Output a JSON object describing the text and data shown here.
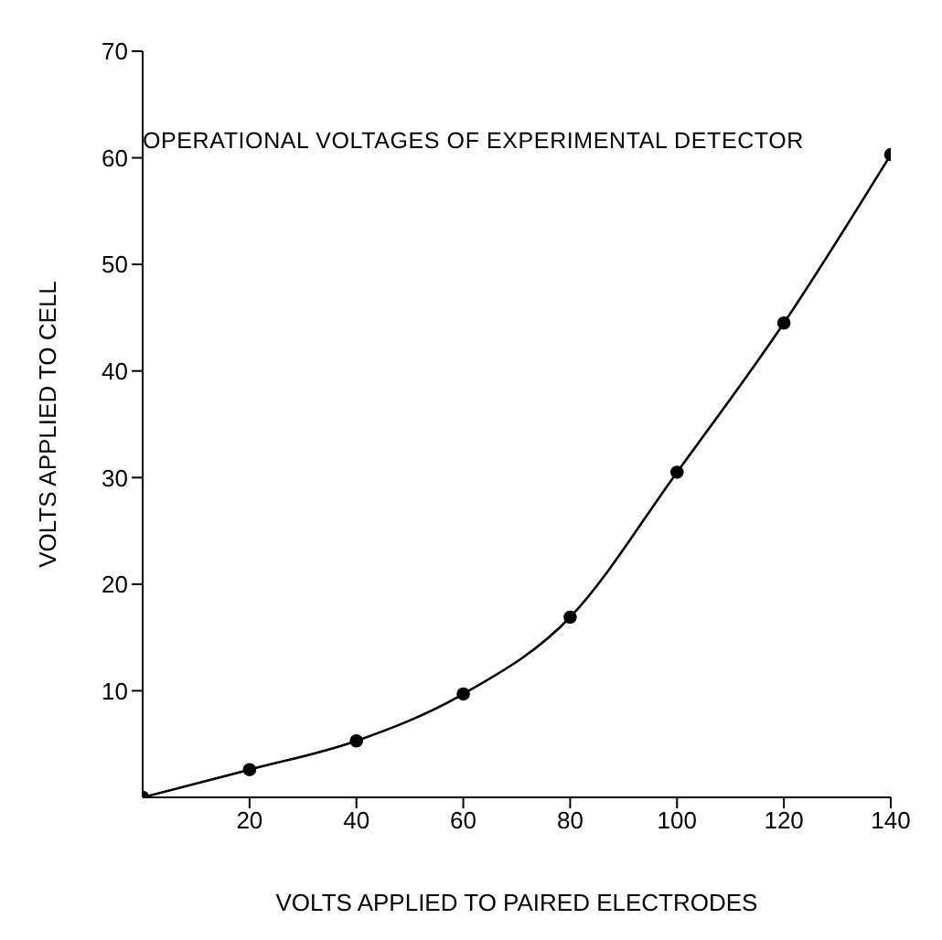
{
  "chart_data": {
    "type": "line",
    "title": "OPERATIONAL VOLTAGES OF EXPERIMENTAL DETECTOR",
    "xlabel": "VOLTS APPLIED TO PAIRED ELECTRODES",
    "ylabel": "VOLTS APPLIED TO CELL",
    "x": [
      0,
      20,
      40,
      60,
      80,
      100,
      120,
      140
    ],
    "series": [
      {
        "color": "#000000",
        "values": [
          0,
          2.6,
          5.3,
          9.7,
          16.9,
          30.5,
          44.5,
          60.3
        ]
      }
    ],
    "xlim": [
      0,
      140
    ],
    "xticks": [
      20,
      40,
      60,
      80,
      100,
      120,
      140
    ],
    "ylim": [
      0,
      70
    ],
    "yticks": [
      10,
      20,
      30,
      40,
      50,
      60,
      70
    ],
    "marker": "circle",
    "grid": false,
    "legend": false
  }
}
